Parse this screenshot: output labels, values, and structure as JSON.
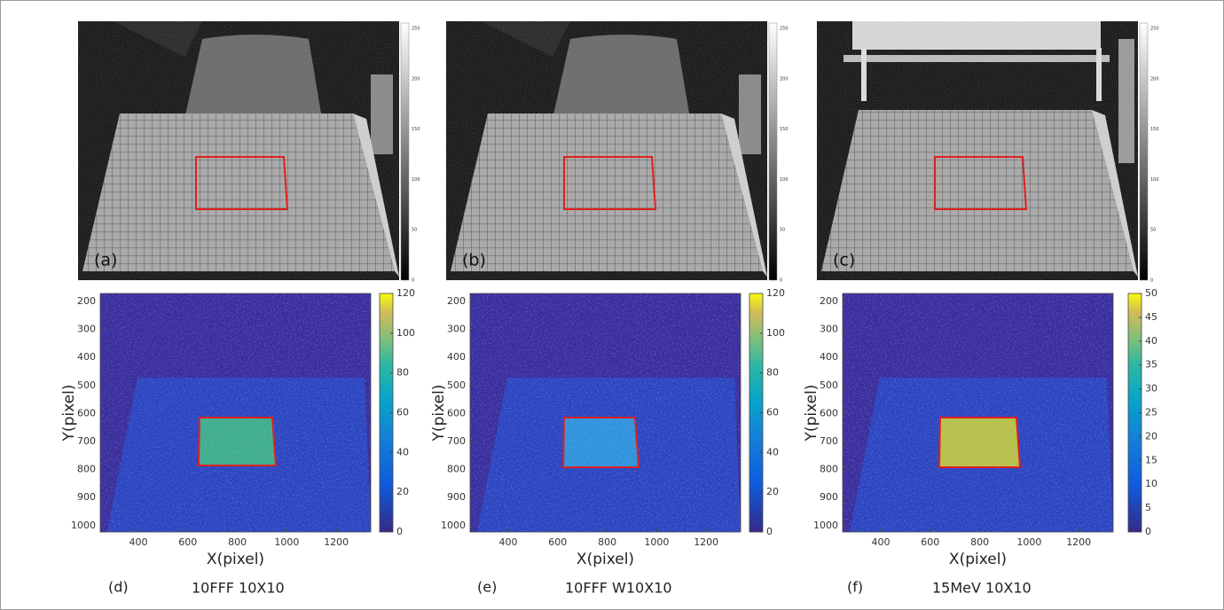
{
  "panels": [
    {
      "photo_label": "(a)",
      "photo_colorbar_ticks": [
        0,
        50,
        100,
        150,
        200,
        250
      ],
      "heatmap": {
        "y_label": "Y(pixel)",
        "x_label": "X(pixel)",
        "yticks": [
          200,
          300,
          400,
          500,
          600,
          700,
          800,
          900,
          1000
        ],
        "xticks": [
          400,
          600,
          800,
          1000,
          1200
        ],
        "colorbar_ticks": [
          0,
          20,
          40,
          60,
          80,
          100,
          120
        ]
      },
      "caption_letter": "(d)",
      "caption": "10FFF 10X10"
    },
    {
      "photo_label": "(b)",
      "photo_colorbar_ticks": [
        0,
        50,
        100,
        150,
        200,
        250
      ],
      "heatmap": {
        "y_label": "Y(pixel)",
        "x_label": "X(pixel)",
        "yticks": [
          200,
          300,
          400,
          500,
          600,
          700,
          800,
          900,
          1000
        ],
        "xticks": [
          400,
          600,
          800,
          1000,
          1200
        ],
        "colorbar_ticks": [
          0,
          20,
          40,
          60,
          80,
          100,
          120
        ]
      },
      "caption_letter": "(e)",
      "caption": "10FFF W10X10"
    },
    {
      "photo_label": "(c)",
      "photo_colorbar_ticks": [
        0,
        50,
        100,
        150,
        200,
        250
      ],
      "heatmap": {
        "y_label": "Y(pixel)",
        "x_label": "X(pixel)",
        "yticks": [
          200,
          300,
          400,
          500,
          600,
          700,
          800,
          900,
          1000
        ],
        "xticks": [
          400,
          600,
          800,
          1000,
          1200
        ],
        "colorbar_ticks": [
          0,
          5,
          10,
          15,
          20,
          25,
          30,
          35,
          40,
          45,
          50
        ]
      },
      "caption_letter": "(f)",
      "caption": "15MeV 10X10"
    }
  ]
}
